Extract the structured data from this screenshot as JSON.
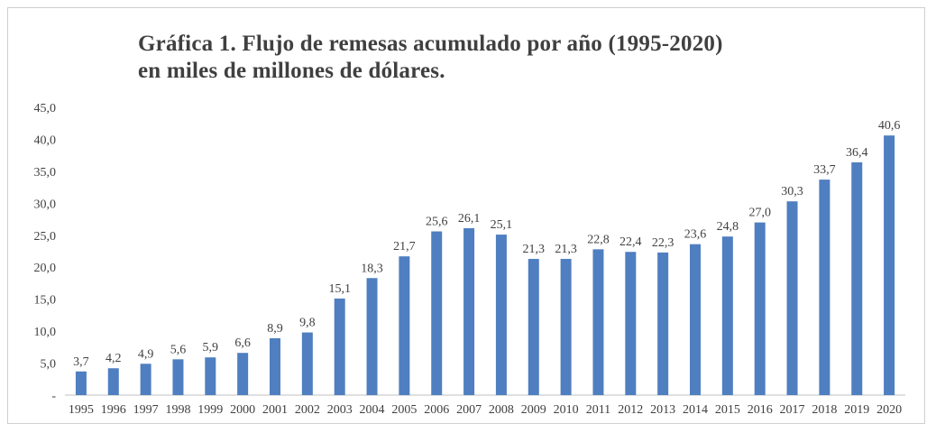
{
  "chart_data": {
    "type": "bar",
    "title_lines": [
      "Gráfica 1. Flujo de remesas acumulado por año (1995-2020)",
      "en miles de millones de dólares."
    ],
    "categories": [
      "1995",
      "1996",
      "1997",
      "1998",
      "1999",
      "2000",
      "2001",
      "2002",
      "2003",
      "2004",
      "2005",
      "2006",
      "2007",
      "2008",
      "2009",
      "2010",
      "2011",
      "2012",
      "2013",
      "2014",
      "2015",
      "2016",
      "2017",
      "2018",
      "2019",
      "2020"
    ],
    "values": [
      3.7,
      4.2,
      4.9,
      5.6,
      5.9,
      6.6,
      8.9,
      9.8,
      15.1,
      18.3,
      21.7,
      25.6,
      26.1,
      25.1,
      21.3,
      21.3,
      22.8,
      22.4,
      22.3,
      23.6,
      24.8,
      27.0,
      30.3,
      33.7,
      36.4,
      40.6
    ],
    "data_labels": [
      "3,7",
      "4,2",
      "4,9",
      "5,6",
      "5,9",
      "6,6",
      "8,9",
      "9,8",
      "15,1",
      "18,3",
      "21,7",
      "25,6",
      "26,1",
      "25,1",
      "21,3",
      "21,3",
      "22,8",
      "22,4",
      "22,3",
      "23,6",
      "24,8",
      "27,0",
      "30,3",
      "33,7",
      "36,4",
      "40,6"
    ],
    "yticks": [
      0,
      5,
      10,
      15,
      20,
      25,
      30,
      35,
      40,
      45
    ],
    "ytick_labels": [
      "-",
      "5,0",
      "10,0",
      "15,0",
      "20,0",
      "25,0",
      "30,0",
      "35,0",
      "40,0",
      "45,0"
    ],
    "ylim": [
      0,
      45
    ],
    "grid": false,
    "legend": "none",
    "bar_color": "#4f7fc0",
    "axis_color": "#bfbfbf"
  }
}
